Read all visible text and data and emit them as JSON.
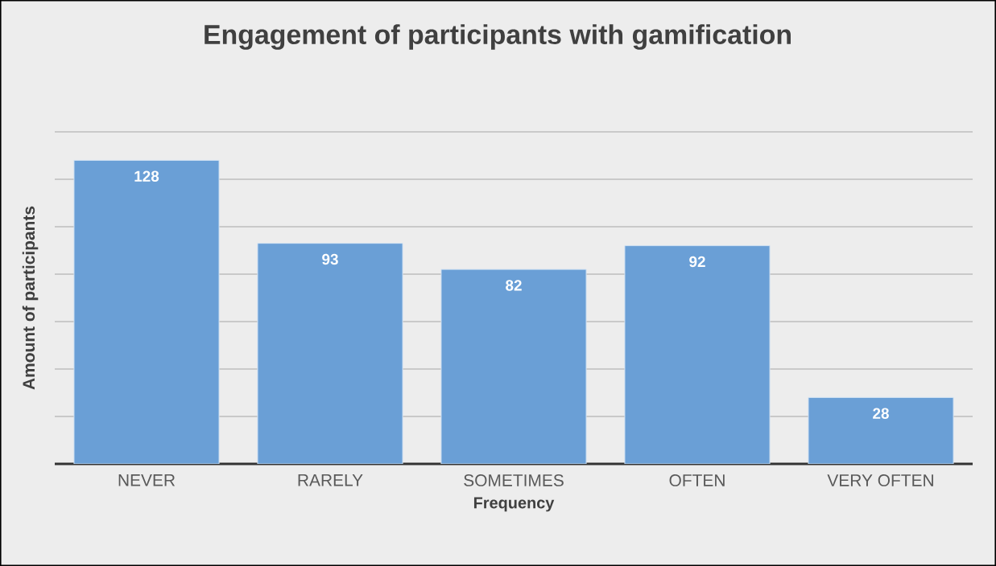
{
  "chart_data": {
    "type": "bar",
    "title": "Engagement of participants with gamification",
    "xlabel": "Frequency",
    "ylabel": "Amount of participants",
    "categories": [
      "NEVER",
      "RARELY",
      "SOMETIMES",
      "OFTEN",
      "VERY OFTEN"
    ],
    "values": [
      128,
      93,
      82,
      92,
      28
    ],
    "color": "#6a9fd6",
    "ylim": [
      0,
      140
    ],
    "yticks": [
      {
        "value": 0,
        "label": null
      },
      {
        "value": 20,
        "label": null
      },
      {
        "value": 40,
        "label": null
      },
      {
        "value": 60,
        "label": null
      },
      {
        "value": 80,
        "label": null
      },
      {
        "value": 100,
        "label": null
      },
      {
        "value": 120,
        "label": null
      },
      {
        "value": 140,
        "label": null
      }
    ],
    "grid": "y",
    "tick_labels": "x",
    "data_labels": true
  }
}
